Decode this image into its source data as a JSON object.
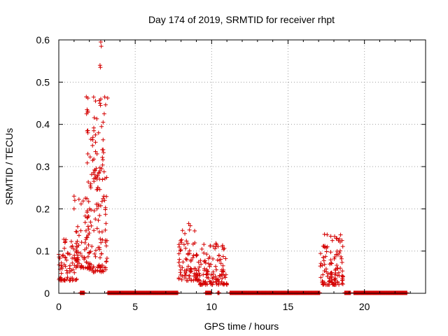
{
  "chart_data": {
    "type": "scatter",
    "title": "Day 174 of 2019, SRMTID for receiver rhpt",
    "xlabel": "GPS time / hours",
    "ylabel": "SRMTID / TECUs",
    "xlim": [
      0,
      24
    ],
    "ylim": [
      0,
      0.6
    ],
    "xticks": [
      0,
      5,
      10,
      15,
      20
    ],
    "xtick_labels": [
      "0",
      "5",
      "10",
      "15",
      "20"
    ],
    "yticks": [
      0,
      0.1,
      0.2,
      0.3,
      0.4,
      0.5,
      0.6
    ],
    "ytick_labels": [
      "0",
      "0.1",
      "0.2",
      "0.3",
      "0.4",
      "0.5",
      "0.6"
    ],
    "grid": true,
    "marker": "+",
    "color": "#d40000",
    "series": [
      {
        "name": "SRMTID",
        "clusters": [
          {
            "x_range": [
              0.0,
              1.2
            ],
            "y_range": [
              0.03,
              0.13
            ],
            "count": 70
          },
          {
            "x_range": [
              1.0,
              2.0
            ],
            "y_range": [
              0.06,
              0.23
            ],
            "count": 60
          },
          {
            "x_range": [
              1.8,
              3.2
            ],
            "y_range": [
              0.05,
              0.47
            ],
            "count": 150
          },
          {
            "x_range": [
              7.8,
              9.2
            ],
            "y_range": [
              0.03,
              0.17
            ],
            "count": 90
          },
          {
            "x_range": [
              9.2,
              11.0
            ],
            "y_range": [
              0.02,
              0.12
            ],
            "count": 110
          },
          {
            "x_range": [
              17.1,
              18.6
            ],
            "y_range": [
              0.02,
              0.14
            ],
            "count": 110
          }
        ],
        "points": [
          [
            2.75,
            0.595
          ],
          [
            2.78,
            0.585
          ],
          [
            2.7,
            0.54
          ],
          [
            2.72,
            0.535
          ],
          [
            2.75,
            0.46
          ],
          [
            2.7,
            0.45
          ],
          [
            1.8,
            0.465
          ],
          [
            1.85,
            0.435
          ],
          [
            1.82,
            0.425
          ],
          [
            2.9,
            0.405
          ],
          [
            2.8,
            0.395
          ],
          [
            2.6,
            0.38
          ],
          [
            1.9,
            0.38
          ],
          [
            2.4,
            0.375
          ],
          [
            2.85,
            0.34
          ],
          [
            2.9,
            0.34
          ],
          [
            2.5,
            0.33
          ],
          [
            1.9,
            0.33
          ],
          [
            2.7,
            0.29
          ],
          [
            2.8,
            0.295
          ],
          [
            2.1,
            0.25
          ],
          [
            2.3,
            0.265
          ],
          [
            1.0,
            0.23
          ],
          [
            1.05,
            0.22
          ],
          [
            2.95,
            0.23
          ],
          [
            3.0,
            0.22
          ],
          [
            1.0,
            0.2
          ],
          [
            2.5,
            0.2
          ],
          [
            8.5,
            0.165
          ],
          [
            8.6,
            0.16
          ],
          [
            8.55,
            0.15
          ],
          [
            10.3,
            0.115
          ],
          [
            10.7,
            0.11
          ],
          [
            17.8,
            0.135
          ],
          [
            18.2,
            0.13
          ],
          [
            17.9,
            0.125
          ]
        ],
        "zero_segments": [
          [
            1.4,
            1.7
          ],
          [
            3.2,
            7.8
          ],
          [
            9.6,
            10.0
          ],
          [
            10.4,
            10.5
          ],
          [
            11.2,
            17.1
          ],
          [
            18.7,
            19.1
          ],
          [
            19.3,
            22.8
          ]
        ]
      }
    ]
  }
}
